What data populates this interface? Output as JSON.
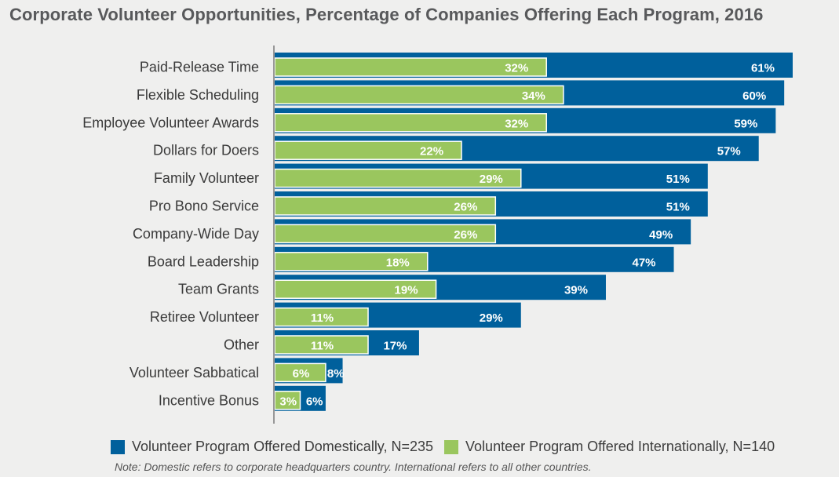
{
  "title": "Corporate Volunteer Opportunities, Percentage of Companies Offering Each Program, 2016",
  "colors": {
    "domestic": "#00609c",
    "international": "#9ac65e",
    "background": "#efefee"
  },
  "legend": {
    "domestic": "Volunteer Program Offered Domestically, N=235",
    "international": "Volunteer Program Offered Internationally, N=140"
  },
  "note": "Note: Domestic refers to corporate headquarters country. International refers to all other countries.",
  "chart_data": {
    "type": "bar",
    "orientation": "horizontal",
    "title": "Corporate Volunteer Opportunities, Percentage of Companies Offering Each Program, 2016",
    "categories": [
      "Paid-Release Time",
      "Flexible Scheduling",
      "Employee Volunteer Awards",
      "Dollars for Doers",
      "Family Volunteer",
      "Pro Bono Service",
      "Company-Wide Day",
      "Board Leadership",
      "Team Grants",
      "Retiree Volunteer",
      "Other",
      "Volunteer Sabbatical",
      "Incentive Bonus"
    ],
    "series": [
      {
        "name": "Volunteer Program Offered Domestically, N=235",
        "values": [
          61,
          60,
          59,
          57,
          51,
          51,
          49,
          47,
          39,
          29,
          17,
          8,
          6
        ],
        "labels": [
          "61%",
          "60%",
          "59%",
          "57%",
          "51%",
          "51%",
          "49%",
          "47%",
          "39%",
          "29%",
          "17%",
          "8%",
          "6%"
        ]
      },
      {
        "name": "Volunteer Program Offered Internationally, N=140",
        "values": [
          32,
          34,
          32,
          22,
          29,
          26,
          26,
          18,
          19,
          11,
          11,
          6,
          3
        ],
        "labels": [
          "32%",
          "34%",
          "32%",
          "22%",
          "29%",
          "26%",
          "26%",
          "18%",
          "19%",
          "11%",
          "11%",
          "6%",
          "3%"
        ]
      }
    ],
    "xlim": [
      0,
      61
    ],
    "grid": false,
    "legend_position": "bottom"
  }
}
